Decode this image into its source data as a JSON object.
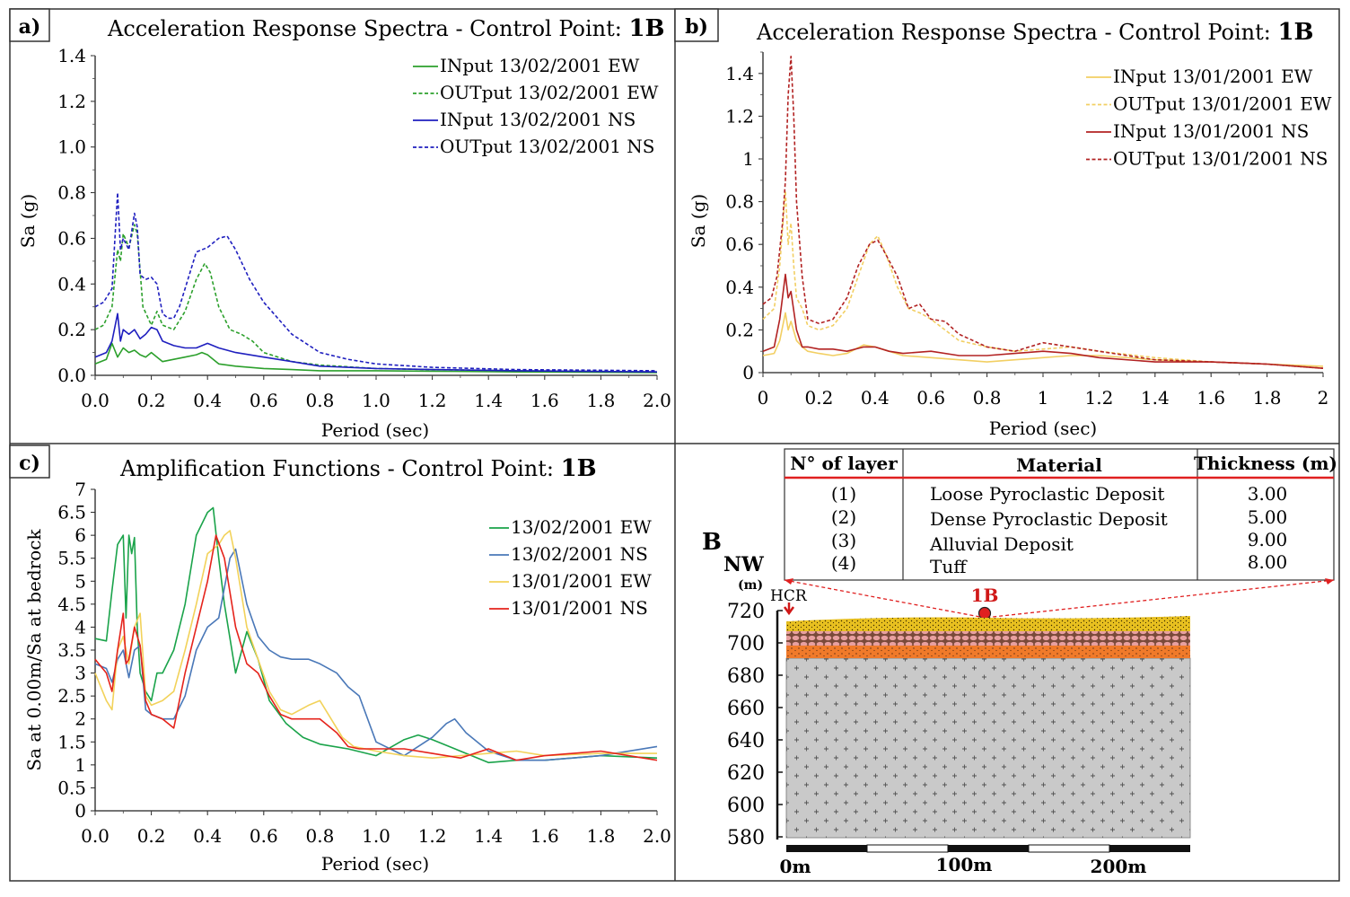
{
  "panels": {
    "a": {
      "tag": "a)",
      "title": "Acceleration Response Spectra - Control Point: ",
      "point": "1B"
    },
    "b": {
      "tag": "b)",
      "title": "Acceleration Response Spectra - Control Point: ",
      "point": "1B"
    },
    "c": {
      "tag": "c)",
      "title": "Amplification Functions - Control Point: ",
      "point": "1B"
    }
  },
  "colors": {
    "feb_ew": "#2ca02c",
    "feb_ns": "#1f1fbf",
    "jan_ew": "#f2cf63",
    "jan_ns": "#b22222",
    "ampl_feb_ew": "#1aa34a",
    "ampl_feb_ns": "#4a78b8",
    "ampl_jan_ew": "#f2d25a",
    "ampl_jan_ns": "#e5231b"
  },
  "chart_data": [
    {
      "type": "line",
      "title": "Acceleration Response Spectra - Control Point: 1B",
      "xlabel": "Period (sec)",
      "ylabel": "Sa (g)",
      "xlim": [
        0,
        2
      ],
      "ylim": [
        0,
        1.4
      ],
      "xticks": [
        "0.0",
        "0.2",
        "0.4",
        "0.6",
        "0.8",
        "1.0",
        "1.2",
        "1.4",
        "1.6",
        "1.8",
        "2.0"
      ],
      "yticks": [
        "0.0",
        "0.2",
        "0.4",
        "0.6",
        "0.8",
        "1.0",
        "1.2",
        "1.4"
      ],
      "legend": "top-right",
      "series": [
        {
          "name": "INput 13/02/2001 EW",
          "style": "solid",
          "color": "#2ca02c",
          "x": [
            0,
            0.04,
            0.06,
            0.08,
            0.1,
            0.12,
            0.14,
            0.16,
            0.18,
            0.2,
            0.22,
            0.24,
            0.28,
            0.32,
            0.36,
            0.38,
            0.4,
            0.44,
            0.5,
            0.6,
            0.7,
            0.8,
            1.0,
            1.2,
            1.5,
            2.0
          ],
          "y": [
            0.05,
            0.07,
            0.14,
            0.08,
            0.12,
            0.1,
            0.11,
            0.09,
            0.08,
            0.1,
            0.08,
            0.06,
            0.07,
            0.08,
            0.09,
            0.1,
            0.09,
            0.05,
            0.04,
            0.03,
            0.025,
            0.02,
            0.02,
            0.018,
            0.015,
            0.012
          ]
        },
        {
          "name": "OUTput 13/02/2001 EW",
          "style": "dashed",
          "color": "#2ca02c",
          "x": [
            0,
            0.03,
            0.06,
            0.08,
            0.09,
            0.1,
            0.12,
            0.14,
            0.15,
            0.17,
            0.2,
            0.22,
            0.24,
            0.28,
            0.32,
            0.36,
            0.39,
            0.41,
            0.44,
            0.48,
            0.52,
            0.56,
            0.6,
            0.7,
            0.8,
            1.0,
            1.2,
            1.5,
            2.0
          ],
          "y": [
            0.2,
            0.22,
            0.3,
            0.55,
            0.5,
            0.62,
            0.56,
            0.66,
            0.62,
            0.3,
            0.22,
            0.28,
            0.22,
            0.2,
            0.28,
            0.42,
            0.49,
            0.45,
            0.3,
            0.2,
            0.18,
            0.15,
            0.1,
            0.06,
            0.045,
            0.03,
            0.025,
            0.02,
            0.015
          ]
        },
        {
          "name": "INput 13/02/2001 NS",
          "style": "solid",
          "color": "#1f1fbf",
          "x": [
            0,
            0.04,
            0.06,
            0.08,
            0.09,
            0.1,
            0.12,
            0.14,
            0.16,
            0.18,
            0.2,
            0.22,
            0.24,
            0.28,
            0.32,
            0.36,
            0.4,
            0.44,
            0.5,
            0.6,
            0.7,
            0.8,
            1.0,
            1.2,
            1.5,
            2.0
          ],
          "y": [
            0.08,
            0.1,
            0.15,
            0.27,
            0.15,
            0.2,
            0.18,
            0.2,
            0.16,
            0.18,
            0.21,
            0.2,
            0.15,
            0.13,
            0.12,
            0.12,
            0.14,
            0.12,
            0.1,
            0.08,
            0.06,
            0.04,
            0.03,
            0.025,
            0.02,
            0.015
          ]
        },
        {
          "name": "OUTput 13/02/2001 NS",
          "style": "dashed",
          "color": "#1f1fbf",
          "x": [
            0,
            0.03,
            0.06,
            0.08,
            0.09,
            0.1,
            0.12,
            0.14,
            0.15,
            0.16,
            0.18,
            0.2,
            0.22,
            0.24,
            0.26,
            0.28,
            0.3,
            0.32,
            0.36,
            0.4,
            0.44,
            0.47,
            0.5,
            0.55,
            0.6,
            0.7,
            0.8,
            0.9,
            1.0,
            1.2,
            1.5,
            2.0
          ],
          "y": [
            0.3,
            0.32,
            0.38,
            0.8,
            0.55,
            0.6,
            0.55,
            0.71,
            0.65,
            0.44,
            0.42,
            0.43,
            0.4,
            0.27,
            0.25,
            0.25,
            0.3,
            0.38,
            0.54,
            0.56,
            0.6,
            0.61,
            0.55,
            0.42,
            0.32,
            0.18,
            0.1,
            0.07,
            0.05,
            0.035,
            0.025,
            0.02
          ]
        }
      ]
    },
    {
      "type": "line",
      "title": "Acceleration Response Spectra - Control Point: 1B",
      "xlabel": "Period (sec)",
      "ylabel": "Sa (g)",
      "xlim": [
        0,
        2
      ],
      "ylim": [
        0,
        1.5
      ],
      "xticks": [
        "0",
        "0.2",
        "0.4",
        "0.6",
        "0.8",
        "1",
        "1.2",
        "1.4",
        "1.6",
        "1.8",
        "2"
      ],
      "yticks": [
        "0",
        "0.2",
        "0.4",
        "0.6",
        "0.8",
        "1",
        "1.2",
        "1.4"
      ],
      "legend": "top-right",
      "series": [
        {
          "name": "INput 13/01/2001 EW",
          "style": "solid",
          "color": "#f2cf63",
          "x": [
            0,
            0.04,
            0.06,
            0.08,
            0.09,
            0.1,
            0.12,
            0.14,
            0.16,
            0.2,
            0.25,
            0.3,
            0.36,
            0.4,
            0.45,
            0.5,
            0.6,
            0.7,
            0.8,
            0.9,
            1.0,
            1.1,
            1.2,
            1.4,
            1.6,
            1.8,
            2.0
          ],
          "y": [
            0.08,
            0.09,
            0.15,
            0.28,
            0.2,
            0.24,
            0.15,
            0.12,
            0.1,
            0.09,
            0.08,
            0.09,
            0.13,
            0.12,
            0.1,
            0.08,
            0.07,
            0.06,
            0.05,
            0.06,
            0.07,
            0.08,
            0.08,
            0.06,
            0.05,
            0.04,
            0.03
          ]
        },
        {
          "name": "OUTput 13/01/2001 EW",
          "style": "dashed",
          "color": "#f2cf63",
          "x": [
            0,
            0.04,
            0.06,
            0.08,
            0.09,
            0.1,
            0.11,
            0.12,
            0.14,
            0.16,
            0.2,
            0.25,
            0.3,
            0.34,
            0.38,
            0.41,
            0.44,
            0.48,
            0.52,
            0.56,
            0.6,
            0.65,
            0.7,
            0.8,
            0.9,
            1.0,
            1.1,
            1.2,
            1.4,
            1.6,
            1.8,
            2.0
          ],
          "y": [
            0.25,
            0.3,
            0.5,
            0.85,
            0.6,
            0.7,
            0.5,
            0.35,
            0.3,
            0.22,
            0.2,
            0.22,
            0.3,
            0.45,
            0.6,
            0.64,
            0.55,
            0.4,
            0.3,
            0.28,
            0.25,
            0.2,
            0.15,
            0.12,
            0.1,
            0.11,
            0.12,
            0.1,
            0.07,
            0.05,
            0.04,
            0.02
          ]
        },
        {
          "name": "INput 13/01/2001 NS",
          "style": "solid",
          "color": "#b22222",
          "x": [
            0,
            0.04,
            0.06,
            0.08,
            0.09,
            0.1,
            0.12,
            0.14,
            0.16,
            0.2,
            0.25,
            0.3,
            0.36,
            0.4,
            0.45,
            0.5,
            0.6,
            0.7,
            0.8,
            0.9,
            1.0,
            1.1,
            1.2,
            1.4,
            1.6,
            1.8,
            2.0
          ],
          "y": [
            0.1,
            0.12,
            0.25,
            0.46,
            0.35,
            0.38,
            0.2,
            0.12,
            0.12,
            0.11,
            0.11,
            0.1,
            0.12,
            0.12,
            0.1,
            0.09,
            0.1,
            0.08,
            0.08,
            0.09,
            0.1,
            0.09,
            0.07,
            0.05,
            0.05,
            0.04,
            0.02
          ]
        },
        {
          "name": "OUTput 13/01/2001 NS",
          "style": "dashed",
          "color": "#b22222",
          "x": [
            0,
            0.03,
            0.05,
            0.07,
            0.08,
            0.09,
            0.1,
            0.11,
            0.12,
            0.14,
            0.16,
            0.2,
            0.25,
            0.3,
            0.34,
            0.38,
            0.41,
            0.44,
            0.48,
            0.52,
            0.56,
            0.6,
            0.65,
            0.7,
            0.8,
            0.9,
            1.0,
            1.1,
            1.2,
            1.4,
            1.6,
            1.8,
            2.0
          ],
          "y": [
            0.32,
            0.35,
            0.45,
            0.7,
            0.9,
            1.3,
            1.48,
            1.2,
            0.8,
            0.45,
            0.25,
            0.23,
            0.25,
            0.35,
            0.5,
            0.6,
            0.62,
            0.55,
            0.45,
            0.3,
            0.32,
            0.25,
            0.24,
            0.18,
            0.12,
            0.1,
            0.14,
            0.12,
            0.1,
            0.06,
            0.05,
            0.04,
            0.02
          ]
        }
      ]
    },
    {
      "type": "line",
      "title": "Amplification Functions - Control Point: 1B",
      "xlabel": "Period (sec)",
      "ylabel": "Sa at 0.00m/Sa at bedrock",
      "xlim": [
        0,
        2
      ],
      "ylim": [
        0,
        7
      ],
      "xticks": [
        "0.0",
        "0.2",
        "0.4",
        "0.6",
        "0.8",
        "1.0",
        "1.2",
        "1.4",
        "1.6",
        "1.8",
        "2.0"
      ],
      "yticks": [
        "0",
        "0.5",
        "1",
        "1.5",
        "2",
        "2.5",
        "3",
        "3.5",
        "4",
        "4.5",
        "5",
        "5.5",
        "6",
        "6.5",
        "7"
      ],
      "legend": "top-right",
      "series": [
        {
          "name": "13/02/2001 EW",
          "style": "solid",
          "color": "#1aa34a",
          "x": [
            0,
            0.04,
            0.06,
            0.08,
            0.1,
            0.11,
            0.12,
            0.13,
            0.14,
            0.15,
            0.16,
            0.18,
            0.2,
            0.22,
            0.24,
            0.28,
            0.32,
            0.36,
            0.4,
            0.42,
            0.44,
            0.46,
            0.5,
            0.54,
            0.58,
            0.62,
            0.68,
            0.74,
            0.8,
            0.9,
            1.0,
            1.1,
            1.15,
            1.2,
            1.3,
            1.4,
            1.5,
            1.6,
            1.8,
            2.0
          ],
          "y": [
            3.75,
            3.7,
            4.8,
            5.8,
            6.0,
            4.2,
            6.0,
            5.6,
            5.95,
            4.0,
            3.0,
            2.6,
            2.4,
            3.0,
            3.0,
            3.5,
            4.5,
            6.0,
            6.5,
            6.6,
            5.5,
            4.5,
            3.0,
            3.9,
            3.3,
            2.4,
            1.9,
            1.6,
            1.45,
            1.35,
            1.2,
            1.55,
            1.65,
            1.55,
            1.3,
            1.05,
            1.1,
            1.1,
            1.2,
            1.15
          ]
        },
        {
          "name": "13/02/2001 NS",
          "style": "solid",
          "color": "#4a78b8",
          "x": [
            0,
            0.04,
            0.06,
            0.08,
            0.1,
            0.12,
            0.14,
            0.16,
            0.18,
            0.2,
            0.24,
            0.28,
            0.32,
            0.36,
            0.4,
            0.44,
            0.48,
            0.5,
            0.54,
            0.58,
            0.62,
            0.66,
            0.7,
            0.76,
            0.8,
            0.86,
            0.9,
            0.94,
            1.0,
            1.1,
            1.2,
            1.25,
            1.28,
            1.32,
            1.4,
            1.5,
            1.6,
            1.8,
            2.0
          ],
          "y": [
            3.2,
            3.1,
            2.8,
            3.3,
            3.5,
            2.9,
            3.5,
            3.6,
            2.2,
            2.1,
            2.0,
            2.0,
            2.5,
            3.5,
            4.0,
            4.2,
            5.5,
            5.7,
            4.5,
            3.8,
            3.5,
            3.35,
            3.3,
            3.3,
            3.2,
            3.0,
            2.7,
            2.5,
            1.5,
            1.2,
            1.6,
            1.9,
            2.0,
            1.7,
            1.3,
            1.1,
            1.1,
            1.2,
            1.4
          ]
        },
        {
          "name": "13/01/2001 EW",
          "style": "solid",
          "color": "#f2d25a",
          "x": [
            0,
            0.04,
            0.06,
            0.08,
            0.1,
            0.12,
            0.14,
            0.16,
            0.18,
            0.2,
            0.24,
            0.28,
            0.32,
            0.36,
            0.4,
            0.44,
            0.46,
            0.48,
            0.5,
            0.54,
            0.58,
            0.62,
            0.66,
            0.7,
            0.76,
            0.8,
            0.84,
            0.88,
            0.92,
            1.0,
            1.1,
            1.2,
            1.3,
            1.4,
            1.5,
            1.6,
            1.8,
            2.0
          ],
          "y": [
            3.0,
            2.4,
            2.2,
            3.5,
            3.8,
            3.2,
            4.0,
            4.3,
            2.5,
            2.3,
            2.4,
            2.6,
            3.5,
            4.5,
            5.6,
            5.8,
            6.0,
            6.1,
            5.5,
            4.0,
            3.3,
            2.6,
            2.2,
            2.1,
            2.3,
            2.4,
            2.0,
            1.6,
            1.4,
            1.3,
            1.2,
            1.15,
            1.2,
            1.25,
            1.3,
            1.2,
            1.25,
            1.25
          ]
        },
        {
          "name": "13/01/2001 NS",
          "style": "solid",
          "color": "#e5231b",
          "x": [
            0,
            0.04,
            0.06,
            0.08,
            0.1,
            0.11,
            0.12,
            0.14,
            0.16,
            0.18,
            0.2,
            0.24,
            0.28,
            0.32,
            0.36,
            0.4,
            0.43,
            0.46,
            0.5,
            0.54,
            0.58,
            0.62,
            0.66,
            0.7,
            0.76,
            0.8,
            0.86,
            0.9,
            0.94,
            1.0,
            1.1,
            1.2,
            1.3,
            1.4,
            1.5,
            1.6,
            1.8,
            2.0
          ],
          "y": [
            3.3,
            3.0,
            2.6,
            3.5,
            4.3,
            3.2,
            3.3,
            4.0,
            3.6,
            2.4,
            2.1,
            2.0,
            1.8,
            3.0,
            4.0,
            5.0,
            6.0,
            5.5,
            4.0,
            3.2,
            3.0,
            2.5,
            2.1,
            2.0,
            2.0,
            2.0,
            1.7,
            1.4,
            1.35,
            1.35,
            1.35,
            1.25,
            1.15,
            1.35,
            1.1,
            1.2,
            1.3,
            1.1
          ]
        }
      ]
    }
  ],
  "section": {
    "label": "B",
    "direction": "NW",
    "unit": "(m)",
    "hcr_label": "HCR",
    "point_label": "1B",
    "elevations": [
      "720",
      "700",
      "680",
      "660",
      "640",
      "620",
      "600",
      "580"
    ],
    "scale_labels": [
      "0m",
      "100m",
      "200m"
    ],
    "table": {
      "headers": [
        "N° of layer",
        "Material",
        "Thickness (m)"
      ],
      "rows": [
        {
          "n": "(1)",
          "material": "Loose Pyroclastic Deposit",
          "thickness": "3.00"
        },
        {
          "n": "(2)",
          "material": "Dense Pyroclastic Deposit",
          "thickness": "5.00"
        },
        {
          "n": "(3)",
          "material": "Alluvial Deposit",
          "thickness": "9.00"
        },
        {
          "n": "(4)",
          "material": "Tuff",
          "thickness": "8.00"
        }
      ]
    }
  }
}
